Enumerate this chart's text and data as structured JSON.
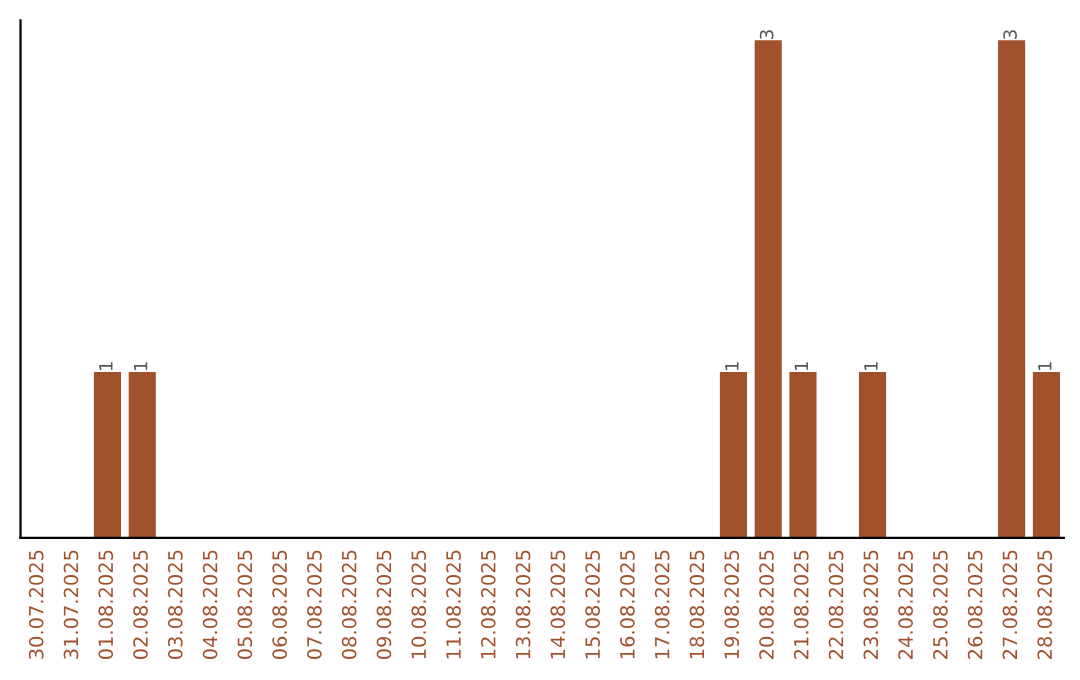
{
  "chart_data": {
    "type": "bar",
    "categories": [
      "30.07.2025",
      "31.07.2025",
      "01.08.2025",
      "02.08.2025",
      "03.08.2025",
      "04.08.2025",
      "05.08.2025",
      "06.08.2025",
      "07.08.2025",
      "08.08.2025",
      "09.08.2025",
      "10.08.2025",
      "11.08.2025",
      "12.08.2025",
      "13.08.2025",
      "14.08.2025",
      "15.08.2025",
      "16.08.2025",
      "17.08.2025",
      "18.08.2025",
      "19.08.2025",
      "20.08.2025",
      "21.08.2025",
      "22.08.2025",
      "23.08.2025",
      "24.08.2025",
      "25.08.2025",
      "26.08.2025",
      "27.08.2025",
      "28.08.2025"
    ],
    "values": [
      0,
      0,
      1,
      1,
      0,
      0,
      0,
      0,
      0,
      0,
      0,
      0,
      0,
      0,
      0,
      0,
      0,
      0,
      0,
      0,
      1,
      3,
      1,
      0,
      1,
      0,
      0,
      0,
      3,
      1
    ],
    "value_labels": [
      null,
      null,
      "1",
      "1",
      null,
      null,
      null,
      null,
      null,
      null,
      null,
      null,
      null,
      null,
      null,
      null,
      null,
      null,
      null,
      null,
      "1",
      "3",
      "1",
      null,
      "1",
      null,
      null,
      null,
      "3",
      "1"
    ],
    "color": "#a0522d",
    "ylim": [
      0,
      3.12
    ],
    "tick_labels": "x",
    "grid": false,
    "legend": false
  }
}
